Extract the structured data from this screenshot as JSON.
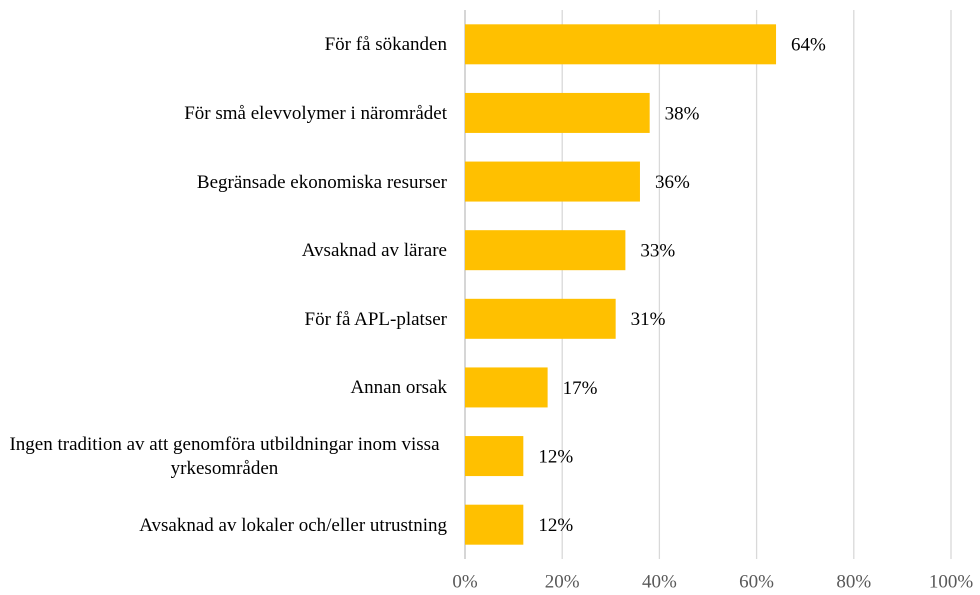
{
  "chart_data": {
    "type": "bar",
    "orientation": "horizontal",
    "categories": [
      "För få sökanden",
      "För små elevvolymer i närområdet",
      "Begränsade ekonomiska resurser",
      "Avsaknad av lärare",
      "För få APL-platser",
      "Annan orsak",
      "Ingen tradition av att genomföra utbildningar inom vissa yrkesområden",
      "Avsaknad av lokaler och/eller utrustning"
    ],
    "values": [
      64,
      38,
      36,
      33,
      31,
      17,
      12,
      12
    ],
    "value_labels": [
      "64%",
      "38%",
      "36%",
      "33%",
      "31%",
      "17%",
      "12%",
      "12%"
    ],
    "color": "#ffc000",
    "xlim": [
      0,
      100
    ],
    "xticks": [
      {
        "value": 0,
        "label": "0%"
      },
      {
        "value": 20,
        "label": "20%"
      },
      {
        "value": 40,
        "label": "40%"
      },
      {
        "value": 60,
        "label": "60%"
      },
      {
        "value": 80,
        "label": "80%"
      },
      {
        "value": 100,
        "label": "100%"
      }
    ],
    "grid": true
  }
}
